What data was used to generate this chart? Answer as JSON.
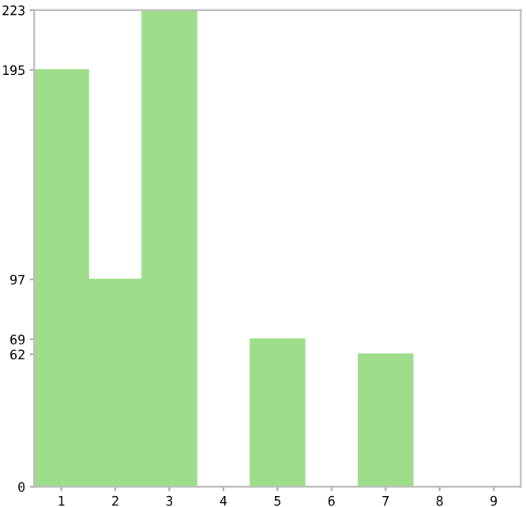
{
  "chart_data": {
    "type": "bar",
    "categories": [
      "1",
      "2",
      "3",
      "4",
      "5",
      "6",
      "7",
      "8",
      "9"
    ],
    "values": [
      195,
      97,
      223,
      0,
      69,
      0,
      62,
      0,
      0
    ],
    "color": "#9ede8a",
    "ylim": [
      0,
      223
    ],
    "yticks": [
      0,
      62,
      69,
      97,
      195,
      223
    ],
    "grid": false
  }
}
